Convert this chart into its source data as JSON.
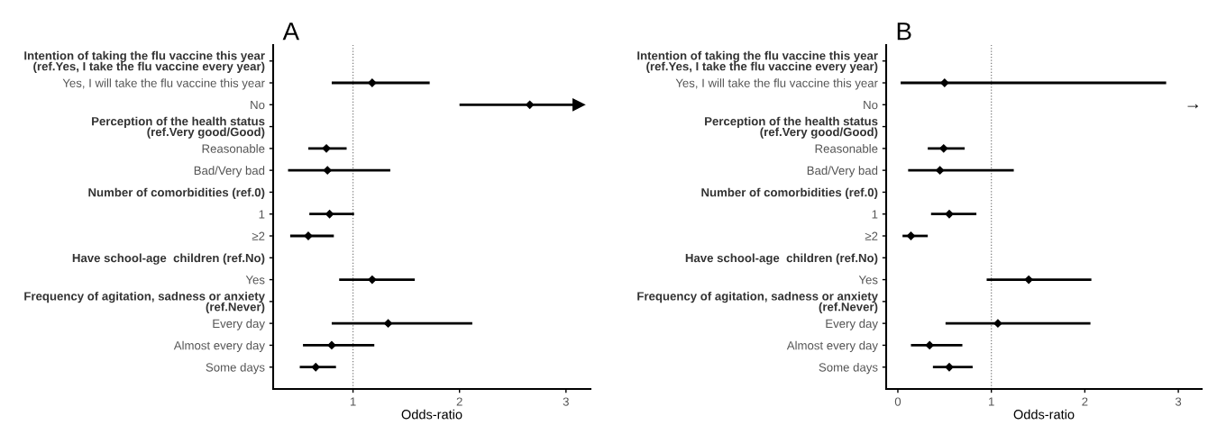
{
  "chart_data": [
    {
      "type": "scatter",
      "orientation": "horizontal",
      "title": "A",
      "xlabel": "Odds-ratio",
      "categories": [
        "Intention of taking the flu vaccine this year\n(ref.Yes, I take the flu vaccine every year)",
        "Yes, I will take the flu vaccine this year",
        "No",
        "Perception of the health status\n(ref.Very good/Good)",
        "Reasonable",
        "Bad/Very bad",
        "Number of comorbidities (ref.0)",
        "1",
        "≥2",
        "Have school-age  children (ref.No)",
        "Yes",
        "Frequency of agitation, sadness or anxiety\n(ref.Never)",
        "Every day",
        "Almost every day",
        "Some days"
      ],
      "values": [
        null,
        1.18,
        2.66,
        null,
        0.75,
        0.76,
        null,
        0.78,
        0.58,
        null,
        1.18,
        null,
        1.33,
        0.8,
        0.65
      ],
      "errors": [
        null,
        [
          0.8,
          1.72
        ],
        [
          2.0,
          3.12
        ],
        null,
        [
          0.58,
          0.94
        ],
        [
          0.39,
          1.35
        ],
        null,
        [
          0.59,
          1.01
        ],
        [
          0.41,
          0.82
        ],
        null,
        [
          0.87,
          1.58
        ],
        null,
        [
          0.8,
          2.12
        ],
        [
          0.53,
          1.2
        ],
        [
          0.5,
          0.84
        ]
      ],
      "color": "#000000",
      "marker": "diamond",
      "xlim": [
        0.25,
        3.23
      ],
      "xticks": [
        1,
        2,
        3
      ],
      "ref_lines": [
        {
          "axis": "x",
          "value": 1,
          "color": "#7f7f7f",
          "line_style": "dotted"
        }
      ],
      "grid": false,
      "legend": false
    },
    {
      "type": "scatter",
      "orientation": "horizontal",
      "title": "B",
      "xlabel": "Odds-ratio",
      "categories": [
        "Intention of taking the flu vaccine this year\n(ref.Yes, I take the flu vaccine every year)",
        "Yes, I will take the flu vaccine this year",
        "No",
        "Perception of the health status\n(ref.Very good/Good)",
        "Reasonable",
        "Bad/Very bad",
        "Number of comorbidities (ref.0)",
        "1",
        "≥2",
        "Have school-age  children (ref.No)",
        "Yes",
        "Frequency of agitation, sadness or anxiety\n(ref.Never)",
        "Every day",
        "Almost every day",
        "Some days"
      ],
      "values": [
        null,
        0.5,
        null,
        null,
        0.49,
        0.45,
        null,
        0.55,
        0.14,
        null,
        1.4,
        null,
        1.07,
        0.34,
        0.55
      ],
      "errors": [
        null,
        [
          0.03,
          2.87
        ],
        null,
        null,
        [
          0.32,
          0.715
        ],
        [
          0.11,
          1.24
        ],
        null,
        [
          0.355,
          0.84
        ],
        [
          0.05,
          0.32
        ],
        null,
        [
          0.95,
          2.07
        ],
        null,
        [
          0.51,
          2.06
        ],
        [
          0.14,
          0.69
        ],
        [
          0.375,
          0.8
        ]
      ],
      "value_labels": [
        null,
        null,
        "→",
        null,
        null,
        null,
        null,
        null,
        null,
        null,
        null,
        null,
        null,
        null,
        null
      ],
      "color": "#000000",
      "marker": "diamond",
      "xlim": [
        -0.125,
        3.25
      ],
      "xticks": [
        0,
        1,
        2,
        3
      ],
      "ref_lines": [
        {
          "axis": "x",
          "value": 1,
          "color": "#7f7f7f",
          "line_style": "dotted"
        }
      ],
      "grid": false,
      "legend": false
    }
  ]
}
